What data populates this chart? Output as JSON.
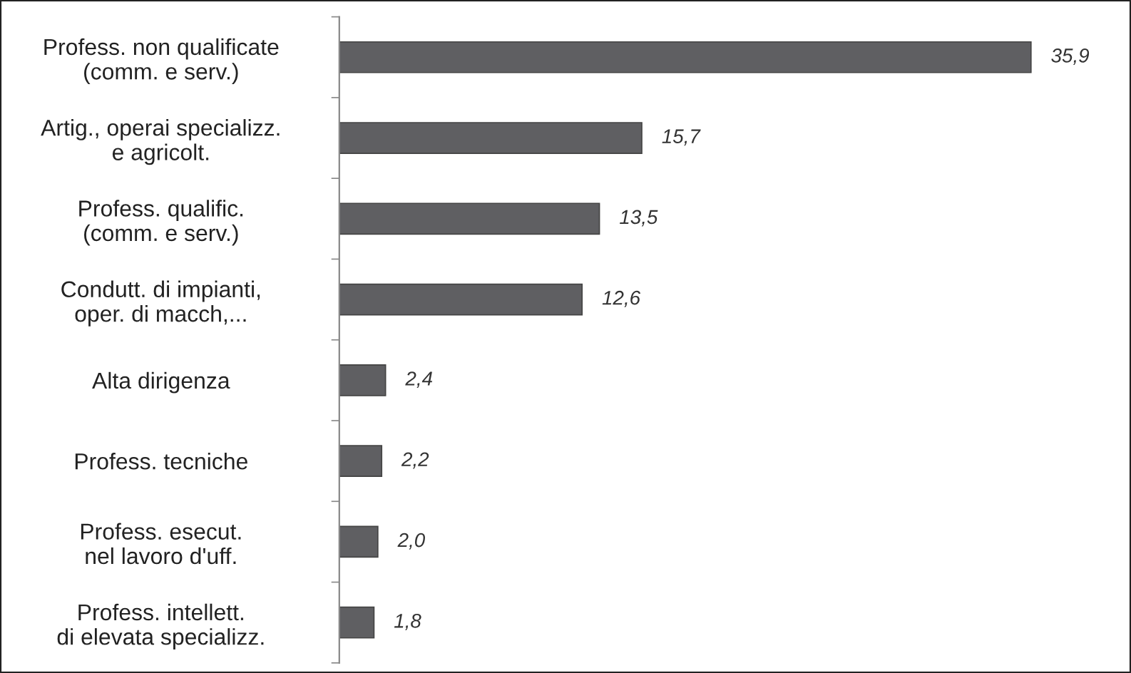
{
  "chart_data": {
    "type": "bar",
    "orientation": "horizontal",
    "categories": [
      "Profess. non qualificate\n(comm. e serv.)",
      "Artig., operai specializz.\ne agricolt.",
      "Profess. qualific.\n(comm. e serv.)",
      "Condutt. di impianti,\noper. di macch,...",
      "Alta dirigenza",
      "Profess. tecniche",
      "Profess. esecut.\nnel lavoro d'uff.",
      "Profess. intellett.\ndi elevata specializz."
    ],
    "values": [
      35.9,
      15.7,
      13.5,
      12.6,
      2.4,
      2.2,
      2.0,
      1.8
    ],
    "value_labels": [
      "35,9",
      "15,7",
      "13,5",
      "12,6",
      "2,4",
      "2,2",
      "2,0",
      "1,8"
    ],
    "color": "#5f5f62",
    "grid": false,
    "tick_labels": "y"
  }
}
